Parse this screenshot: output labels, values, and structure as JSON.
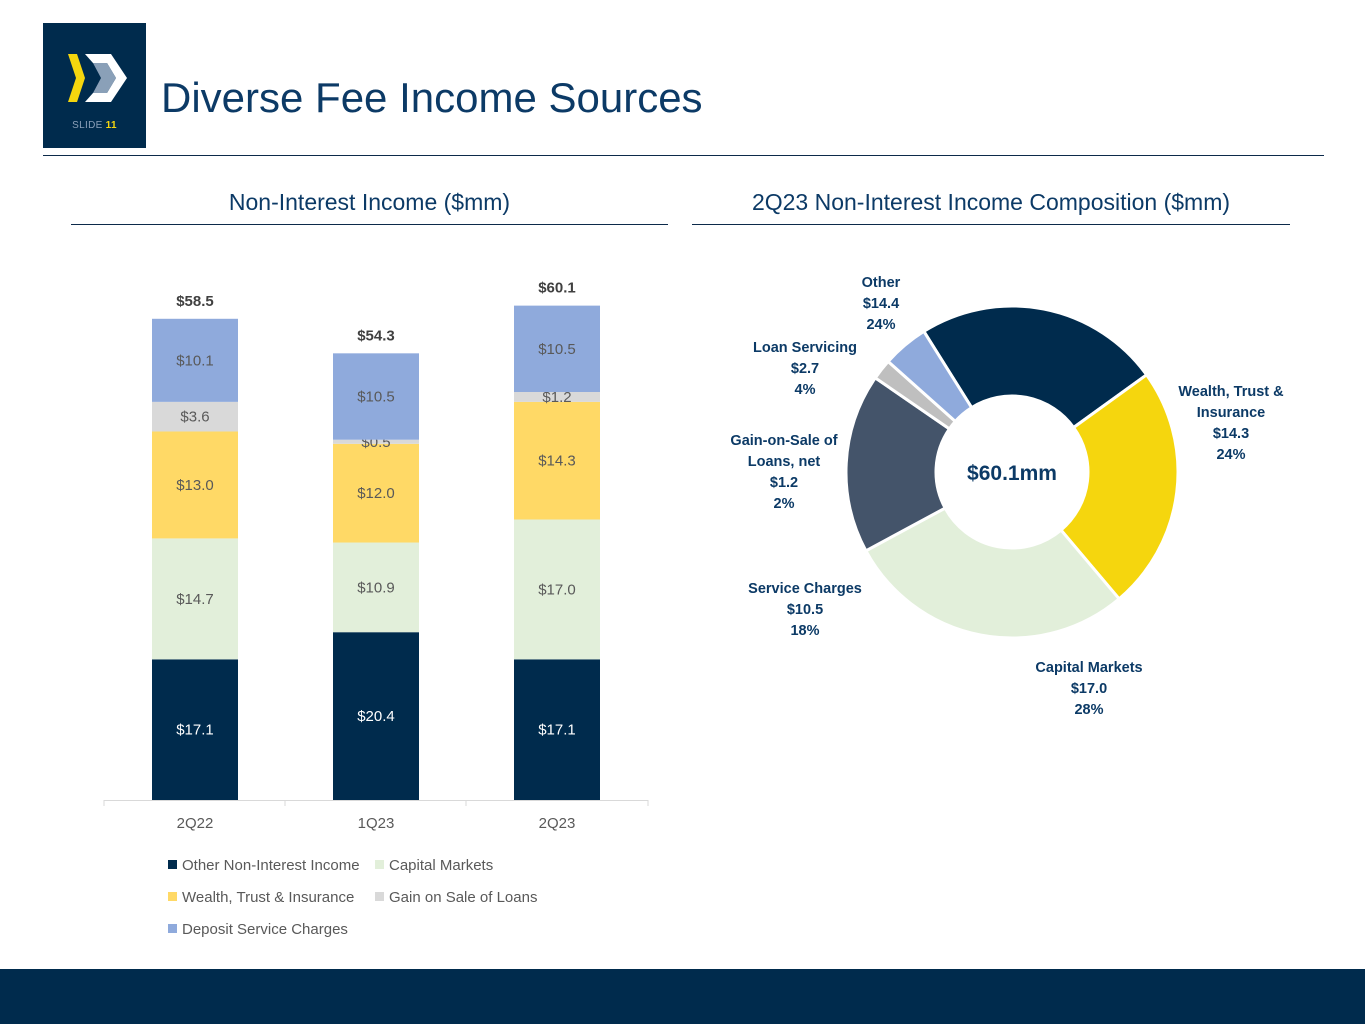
{
  "slide": {
    "label": "SLIDE",
    "number": "11"
  },
  "header": {
    "title": "Diverse Fee Income Sources"
  },
  "colors": {
    "navy": "#002b4d",
    "capital_markets": "#e2efda",
    "wealth": "#ffd966",
    "gain_on_sale": "#d9d9d9",
    "deposit": "#8faadc",
    "wealth_pie": "#f5d60e",
    "service_pie": "#44546a",
    "gain_pie": "#bfbfbf"
  },
  "chart_data": [
    {
      "type": "bar",
      "stacked": true,
      "title": "Non-Interest Income ($mm)",
      "categories": [
        "2Q22",
        "1Q23",
        "2Q23"
      ],
      "totals": [
        "$58.5",
        "$54.3",
        "$60.1"
      ],
      "total_values": [
        58.5,
        54.3,
        60.1
      ],
      "ylim": [
        0,
        62
      ],
      "series": [
        {
          "name": "Other Non-Interest Income",
          "color": "#002b4d",
          "text_color": "#ffffff",
          "values": [
            17.1,
            20.4,
            17.1
          ],
          "labels": [
            "$17.1",
            "$20.4",
            "$17.1"
          ]
        },
        {
          "name": "Capital Markets",
          "color": "#e2efda",
          "text_color": "#595959",
          "values": [
            14.7,
            10.9,
            17.0
          ],
          "labels": [
            "$14.7",
            "$10.9",
            "$17.0"
          ]
        },
        {
          "name": "Wealth, Trust & Insurance",
          "color": "#ffd966",
          "text_color": "#595959",
          "values": [
            13.0,
            12.0,
            14.3
          ],
          "labels": [
            "$13.0",
            "$12.0",
            "$14.3"
          ]
        },
        {
          "name": "Gain on Sale of Loans",
          "color": "#d9d9d9",
          "text_color": "#595959",
          "values": [
            3.6,
            0.5,
            1.2
          ],
          "labels": [
            "$3.6",
            "$0.5",
            "$1.2"
          ]
        },
        {
          "name": "Deposit Service Charges",
          "color": "#8faadc",
          "text_color": "#595959",
          "values": [
            10.1,
            10.5,
            10.5
          ],
          "labels": [
            "$10.1",
            "$10.5",
            "$10.5"
          ]
        }
      ],
      "legend": {
        "placement": "bottom",
        "items": [
          "Other Non-Interest Income",
          "Capital Markets",
          "Wealth, Trust & Insurance",
          "Gain on Sale of Loans",
          "Deposit Service Charges"
        ]
      }
    },
    {
      "type": "pie",
      "variant": "donut",
      "title": "2Q23 Non-Interest Income Composition ($mm)",
      "center_label": "$60.1mm",
      "slices": [
        {
          "name": "Other",
          "value": 14.4,
          "value_label": "$14.4",
          "percent": "24%",
          "color": "#002b4d"
        },
        {
          "name": "Wealth, Trust & Insurance",
          "value": 14.3,
          "value_label": "$14.3",
          "percent": "24%",
          "color": "#f5d60e"
        },
        {
          "name": "Capital Markets",
          "value": 17.0,
          "value_label": "$17.0",
          "percent": "28%",
          "color": "#e2efda"
        },
        {
          "name": "Service Charges",
          "value": 10.5,
          "value_label": "$10.5",
          "percent": "18%",
          "color": "#44546a"
        },
        {
          "name": "Gain-on-Sale of Loans, net",
          "value": 1.2,
          "value_label": "$1.2",
          "percent": "2%",
          "color": "#bfbfbf"
        },
        {
          "name": "Loan Servicing",
          "value": 2.7,
          "value_label": "$2.7",
          "percent": "4%",
          "color": "#8faadc"
        }
      ],
      "label_lines": [
        [
          "Other",
          "$14.4",
          "24%"
        ],
        [
          "Wealth, Trust &",
          "Insurance",
          "$14.3",
          "24%"
        ],
        [
          "Capital Markets",
          "$17.0",
          "28%"
        ],
        [
          "Service Charges",
          "$10.5",
          "18%"
        ],
        [
          "Gain-on-Sale of",
          "Loans, net",
          "$1.2",
          "2%"
        ],
        [
          "Loan Servicing",
          "$2.7",
          "4%"
        ]
      ]
    }
  ]
}
